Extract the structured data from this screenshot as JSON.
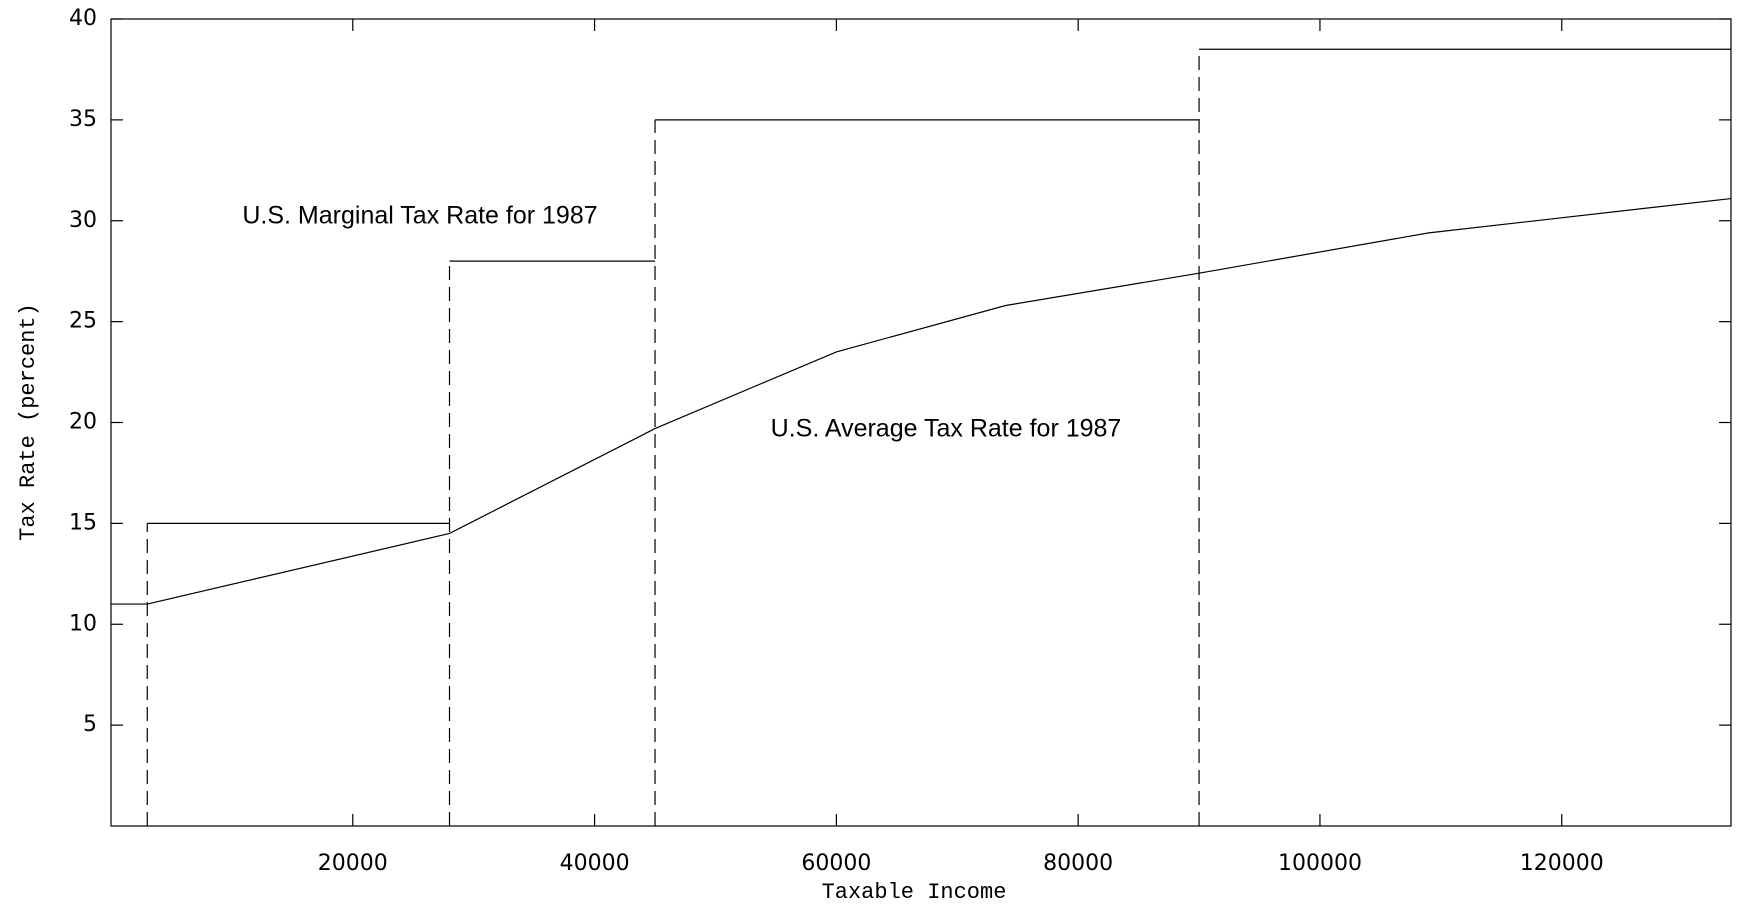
{
  "chart_data": {
    "type": "line",
    "x_label": "Taxable Income",
    "y_label": "Tax Rate (percent)",
    "annotations": [
      "U.S. Marginal Tax Rate for 1987",
      "U.S. Average Tax Rate for 1987"
    ],
    "xlim": [
      0,
      134000
    ],
    "ylim": [
      0,
      40
    ],
    "xticks": [
      20000,
      40000,
      60000,
      80000,
      100000,
      120000
    ],
    "yticks": [
      5,
      10,
      15,
      20,
      25,
      30,
      35,
      40
    ],
    "brackets": {
      "start": [
        0,
        3000,
        28000,
        45000,
        90000
      ],
      "end": [
        3000,
        28000,
        45000,
        90000,
        134000
      ],
      "rate": [
        11,
        15,
        28,
        35,
        38.5
      ],
      "color": "#000000"
    },
    "series": [
      {
        "color": "#000000",
        "x": [
          3000,
          28000,
          45000,
          60000,
          74000,
          90000,
          109000,
          134000
        ],
        "values": [
          11,
          14.5,
          19.7,
          23.5,
          25.8,
          27.4,
          29.4,
          31.1
        ]
      }
    ]
  }
}
